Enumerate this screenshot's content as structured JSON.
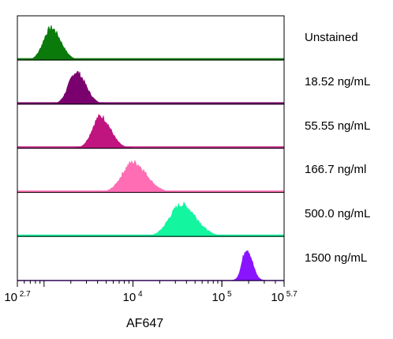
{
  "chart_data": {
    "type": "area",
    "title": "",
    "xlabel": "AF647",
    "ylabel": "",
    "x_scale": "log10",
    "xlim": [
      501,
      501187
    ],
    "x_ticks": [
      {
        "base": "10",
        "exp": "2.7",
        "value": 501
      },
      {
        "base": "10",
        "exp": "4",
        "value": 10000
      },
      {
        "base": "10",
        "exp": "5",
        "value": 100000
      },
      {
        "base": "10",
        "exp": "5.7",
        "value": 501187
      }
    ],
    "series": [
      {
        "name": "Unstained",
        "color": "#0a7a0a",
        "peak_x": 1200,
        "spread_log": 0.085,
        "peak_height": 0.85
      },
      {
        "name": "18.52 ng/mL",
        "color": "#7a006e",
        "peak_x": 2300,
        "spread_log": 0.085,
        "peak_height": 0.85
      },
      {
        "name": "55.55 ng/mL",
        "color": "#c0147e",
        "peak_x": 4300,
        "spread_log": 0.09,
        "peak_height": 0.85
      },
      {
        "name": "166.7 ng/ml",
        "color": "#ff6eb4",
        "peak_x": 10000,
        "spread_log": 0.12,
        "peak_height": 0.8
      },
      {
        "name": "500.0 ng/mL",
        "color": "#14f5a0",
        "peak_x": 35000,
        "spread_log": 0.13,
        "peak_height": 0.85
      },
      {
        "name": "1500 ng/mL",
        "color": "#8a14ff",
        "peak_x": 190000,
        "spread_log": 0.05,
        "peak_height": 0.85
      }
    ]
  }
}
